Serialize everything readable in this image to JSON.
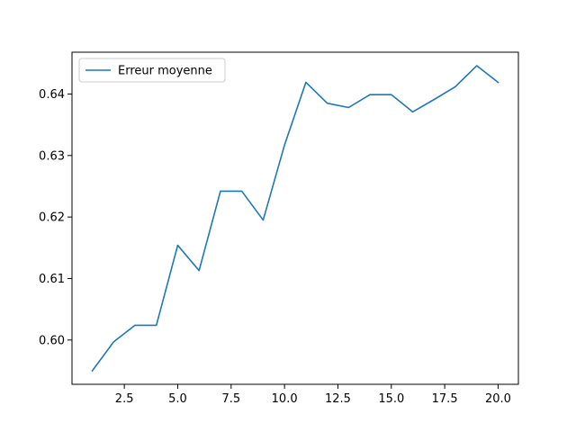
{
  "chart_data": {
    "type": "line",
    "title": "",
    "xlabel": "",
    "ylabel": "",
    "xlim": [
      0.05,
      20.95
    ],
    "ylim": [
      0.5928,
      0.6468
    ],
    "x_ticks": [
      2.5,
      5.0,
      7.5,
      10.0,
      12.5,
      15.0,
      17.5,
      20.0
    ],
    "x_tick_labels": [
      "2.5",
      "5.0",
      "7.5",
      "10.0",
      "12.5",
      "15.0",
      "17.5",
      "20.0"
    ],
    "y_ticks": [
      0.6,
      0.61,
      0.62,
      0.63,
      0.64
    ],
    "y_tick_labels": [
      "0.60",
      "0.61",
      "0.62",
      "0.63",
      "0.64"
    ],
    "grid": false,
    "legend_position": "top-left",
    "series": [
      {
        "name": "Erreur moyenne",
        "color": "#1f77b4",
        "x": [
          1,
          2,
          3,
          4,
          5,
          6,
          7,
          8,
          9,
          10,
          11,
          12,
          13,
          14,
          15,
          16,
          17,
          18,
          19,
          20
        ],
        "y": [
          0.595,
          0.5997,
          0.6024,
          0.6024,
          0.6154,
          0.6113,
          0.6242,
          0.6242,
          0.6195,
          0.6317,
          0.6419,
          0.6385,
          0.6378,
          0.6399,
          0.6399,
          0.6371,
          0.6391,
          0.6412,
          0.6446,
          0.6419
        ]
      }
    ]
  }
}
